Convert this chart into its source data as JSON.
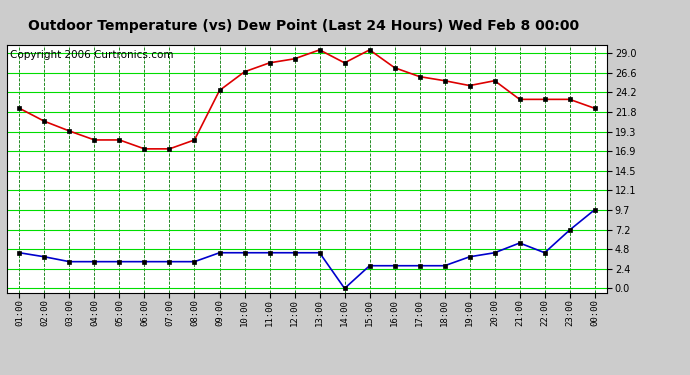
{
  "title": "Outdoor Temperature (vs) Dew Point (Last 24 Hours) Wed Feb 8 00:00",
  "copyright": "Copyright 2006 Curtronics.com",
  "x_labels": [
    "01:00",
    "02:00",
    "03:00",
    "04:00",
    "05:00",
    "06:00",
    "07:00",
    "08:00",
    "09:00",
    "10:00",
    "11:00",
    "12:00",
    "13:00",
    "14:00",
    "15:00",
    "16:00",
    "17:00",
    "18:00",
    "19:00",
    "20:00",
    "21:00",
    "22:00",
    "23:00",
    "00:00"
  ],
  "temp_data": [
    22.2,
    20.6,
    19.4,
    18.3,
    18.3,
    17.2,
    17.2,
    18.3,
    24.4,
    26.7,
    27.8,
    28.3,
    29.4,
    27.8,
    29.4,
    27.2,
    26.1,
    25.6,
    25.0,
    25.6,
    23.3,
    23.3,
    23.3,
    22.2
  ],
  "dew_data": [
    4.4,
    3.9,
    3.3,
    3.3,
    3.3,
    3.3,
    3.3,
    3.3,
    4.4,
    4.4,
    4.4,
    4.4,
    4.4,
    0.0,
    2.8,
    2.8,
    2.8,
    2.8,
    3.9,
    4.4,
    5.6,
    4.4,
    7.2,
    9.7
  ],
  "temp_color": "#dd0000",
  "dew_color": "#0000cc",
  "bg_color": "#cccccc",
  "plot_bg": "#ffffff",
  "grid_color_h": "#00dd00",
  "grid_color_v": "#007700",
  "y_ticks": [
    0.0,
    2.4,
    4.8,
    7.2,
    9.7,
    12.1,
    14.5,
    16.9,
    19.3,
    21.8,
    24.2,
    26.6,
    29.0
  ],
  "ylim": [
    -0.5,
    30.0
  ],
  "title_fontsize": 10,
  "copyright_fontsize": 7.5,
  "marker_color": "#000000",
  "marker_size": 3
}
